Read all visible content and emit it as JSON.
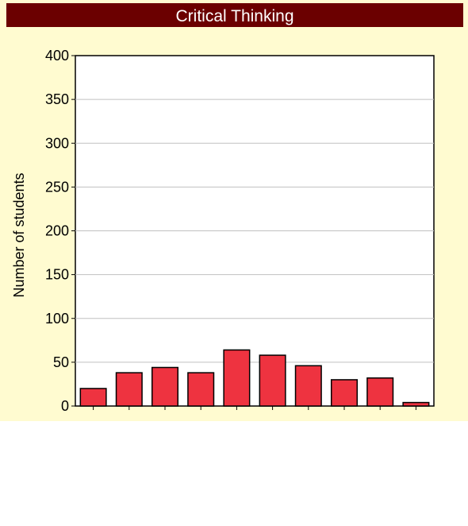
{
  "chart_data": {
    "type": "bar",
    "title": "Critical Thinking",
    "xlabel": "",
    "ylabel": "Number of students",
    "ylim": [
      0,
      400
    ],
    "yticks": [
      "0",
      "50",
      "100",
      "150",
      "200",
      "250",
      "300",
      "350",
      "400"
    ],
    "categories": [
      "",
      "",
      "",
      "",
      "",
      "",
      "",
      "",
      "",
      ""
    ],
    "values": [
      20,
      38,
      44,
      38,
      64,
      58,
      46,
      30,
      32,
      4
    ],
    "grid": true,
    "legend": "none",
    "colors": {
      "bar": "#ee3340",
      "bar_edge": "#000000",
      "title_band": "#6b0000",
      "panel": "#fffbd0",
      "plot_bg": "#ffffff",
      "grid": "#c0c0c0"
    }
  }
}
